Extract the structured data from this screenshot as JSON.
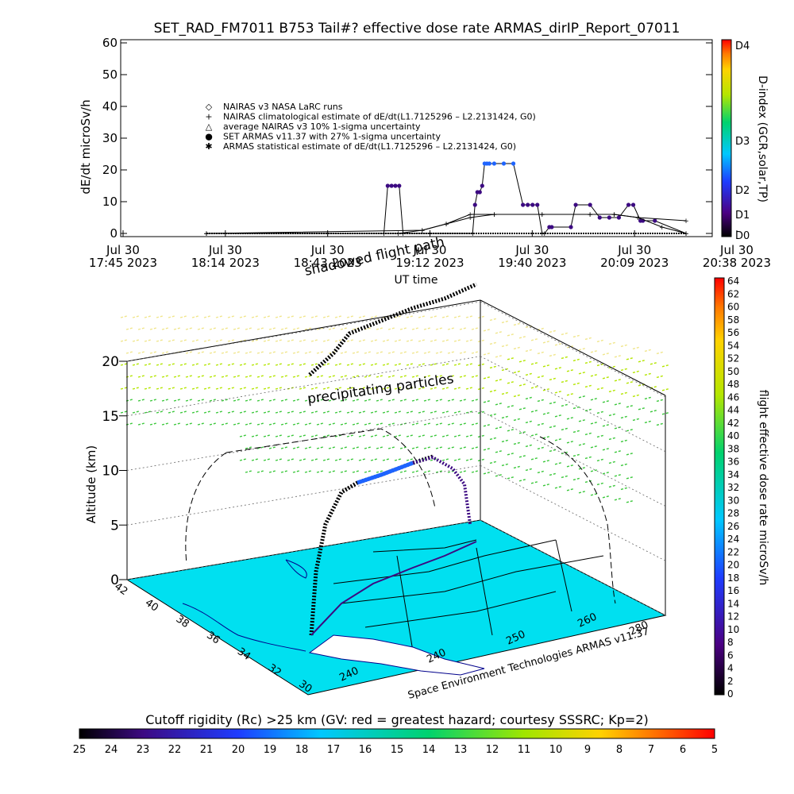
{
  "title": "SET_RAD_FM7011  B753 Tail#? effective dose rate ARMAS_dirIP_Report_07011",
  "chart_data": [
    {
      "type": "line",
      "ylabel": "dE/dt microSv/h",
      "xlabel": "UT time",
      "ylim": [
        0,
        60
      ],
      "yticks": [
        "0",
        "10",
        "20",
        "30",
        "40",
        "50",
        "60"
      ],
      "xticks": [
        {
          "l1": "Jul 30",
          "l2": "17:45 2023"
        },
        {
          "l1": "Jul 30",
          "l2": "18:14 2023"
        },
        {
          "l1": "Jul 30",
          "l2": "18:43 2023"
        },
        {
          "l1": "Jul 30",
          "l2": "19:12 2023"
        },
        {
          "l1": "Jul 30",
          "l2": "19:40 2023"
        },
        {
          "l1": "Jul 30",
          "l2": "20:09 2023"
        },
        {
          "l1": "Jul 30",
          "l2": "20:38 2023"
        }
      ],
      "legend": [
        {
          "sym": "◇",
          "text": "NAIRAS v3 NASA LaRC runs"
        },
        {
          "sym": "+",
          "text": "NAIRAS climatological estimate of dE/dt(L1.7125296 – L2.2131424, G0)"
        },
        {
          "sym": "△",
          "text": "average NAIRAS v3 10% 1-sigma uncertainty"
        },
        {
          "sym": "●",
          "text": "SET ARMAS v11.37 with 27% 1-sigma uncertainty"
        },
        {
          "sym": "✱",
          "text": "ARMAS statistical estimate of dE/dt(L1.7125296 – L2.2131424, G0)"
        }
      ],
      "legend_placement": "center-left",
      "series": [
        {
          "name": "SET ARMAS v11.37 with 27% 1-sigma uncertainty",
          "x": [
            0.0,
            0.37,
            0.378,
            0.386,
            0.394,
            0.402,
            0.41,
            0.555,
            0.56,
            0.565,
            0.57,
            0.575,
            0.58,
            0.585,
            0.59,
            0.6,
            0.62,
            0.64,
            0.66,
            0.67,
            0.68,
            0.69,
            0.7,
            0.705,
            0.715,
            0.72,
            0.76,
            0.77,
            0.8,
            0.82,
            0.84,
            0.86,
            0.88,
            0.89,
            0.905,
            0.91,
            0.935,
            1.0
          ],
          "y": [
            0,
            0,
            15,
            15,
            15,
            15,
            0,
            0,
            9,
            13,
            13,
            15,
            22,
            22,
            22,
            22,
            22,
            22,
            9,
            9,
            9,
            9,
            0,
            0,
            2,
            2,
            2,
            9,
            9,
            5,
            5,
            5,
            9,
            9,
            4,
            4,
            4,
            0
          ]
        },
        {
          "name": "NAIRAS climatological estimate of dE/dt(L1.7125296 – L2.2131424, G0)",
          "x": [
            0.0,
            0.4,
            0.45,
            0.5,
            0.55,
            0.6,
            0.7,
            0.8,
            0.85,
            0.9,
            1.0
          ],
          "y": [
            0,
            0,
            1,
            3,
            6,
            6,
            6,
            6,
            6,
            5,
            4
          ]
        },
        {
          "name": "ARMAS statistical estimate of dE/dt(L1.7125296 – L2.2131424, G0)",
          "x": [
            0.0,
            0.45,
            0.5,
            0.55,
            0.6,
            0.7,
            0.8,
            0.85,
            0.9,
            0.95,
            1.0
          ],
          "y": [
            0,
            1,
            3,
            5,
            6,
            6,
            6,
            6,
            5,
            2,
            0
          ]
        }
      ],
      "colorbar": {
        "label": "D-index (GCR,solar,TP)",
        "ticks": [
          "D0",
          "D1",
          "D2",
          "D3",
          "D4"
        ]
      }
    },
    {
      "type": "surface",
      "zlabel": "Altitude (km)",
      "zticks": [
        "0",
        "5",
        "10",
        "15",
        "20"
      ],
      "lat_ticks": [
        "42",
        "40",
        "38",
        "36",
        "34",
        "32",
        "30"
      ],
      "lon_ticks": [
        "240",
        "240",
        "250",
        "260",
        "280"
      ],
      "annotations": [
        "shadowed flight path",
        "precipitating particles"
      ],
      "credit": "Space Environment Technologies ARMAS v11.37",
      "colorbar_right": {
        "label": "flight effective dose rate microSv/h",
        "ticks": [
          "0",
          "2",
          "4",
          "6",
          "8",
          "10",
          "12",
          "14",
          "16",
          "18",
          "20",
          "22",
          "24",
          "26",
          "28",
          "30",
          "32",
          "34",
          "36",
          "38",
          "40",
          "42",
          "44",
          "46",
          "48",
          "50",
          "52",
          "54",
          "56",
          "58",
          "60",
          "62",
          "64"
        ]
      },
      "colorbar_bottom": {
        "label": "Cutoff rigidity (Rc) >25 km (GV: red = greatest hazard; courtesy SSSRC; Kp=2)",
        "ticks": [
          "25",
          "24",
          "23",
          "22",
          "21",
          "20",
          "19",
          "18",
          "17",
          "16",
          "15",
          "14",
          "13",
          "12",
          "11",
          "10",
          "9",
          "8",
          "7",
          "6",
          "5"
        ]
      }
    }
  ]
}
